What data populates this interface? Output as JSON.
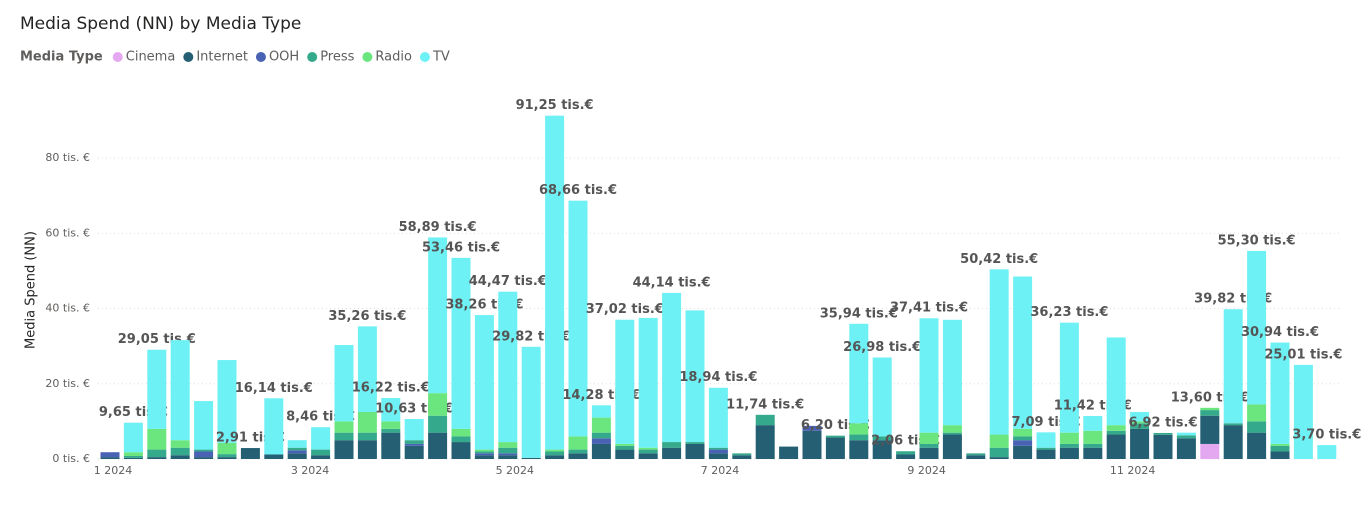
{
  "chart_data": {
    "type": "stacked_bar",
    "title": "Media Spend (NN) by Media Type",
    "legend_title": "Media Type",
    "legend": "top-left",
    "grid": true,
    "y_label": "Media Spend (NN)",
    "ylim": [
      0,
      95
    ],
    "yticks": [
      {
        "value": 0,
        "label": "0 tis. €"
      },
      {
        "value": 20,
        "label": "20 tis. €"
      },
      {
        "value": 40,
        "label": "40 tis. €"
      },
      {
        "value": 60,
        "label": "60 tis. €"
      },
      {
        "value": 80,
        "label": "80 tis. €"
      }
    ],
    "xticks": [
      {
        "value": 0.13,
        "label": "1 2024"
      },
      {
        "value": 8.55,
        "label": "3 2024"
      },
      {
        "value": 17.3,
        "label": "5 2024"
      },
      {
        "value": 26.07,
        "label": "7 2024"
      },
      {
        "value": 34.9,
        "label": "9 2024"
      },
      {
        "value": 43.7,
        "label": "11 2024"
      }
    ],
    "categories": [
      null,
      null,
      null,
      null,
      null,
      null,
      null,
      null,
      null,
      null,
      null,
      null,
      null,
      null,
      null,
      null,
      null,
      null,
      null,
      null,
      null,
      null,
      null,
      null,
      null,
      null,
      null,
      null,
      null,
      null,
      null,
      null,
      null,
      null,
      null,
      null,
      null,
      null,
      null,
      null,
      null,
      null,
      null,
      null,
      null,
      null,
      null,
      null,
      null,
      null,
      null,
      null,
      null
    ],
    "series": [
      {
        "name": "Cinema",
        "color": "#e4a8f0",
        "values": [
          0,
          0,
          0,
          0,
          0,
          0,
          0,
          0,
          0,
          0,
          0,
          0,
          0,
          0,
          0,
          0,
          0,
          0,
          0,
          0,
          0,
          0,
          0,
          0,
          0,
          0,
          0,
          0,
          0,
          0,
          0,
          0,
          0,
          0,
          0,
          0,
          0,
          0,
          0,
          0,
          0,
          0,
          0,
          0,
          0,
          0,
          0,
          4,
          0,
          0,
          0,
          0,
          0
        ]
      },
      {
        "name": "Internet",
        "color": "#245f73",
        "values": [
          0.5,
          0.3,
          0.5,
          1,
          0.5,
          0.5,
          2.91,
          1.2,
          1.5,
          1,
          5,
          5,
          7,
          3.5,
          7,
          4.5,
          1,
          1,
          0.3,
          1,
          1.5,
          4,
          2.5,
          1.5,
          3,
          4,
          1.5,
          1,
          9,
          3.3,
          7.5,
          5.7,
          5,
          5,
          1.2,
          3,
          6.5,
          1,
          0.5,
          3.5,
          2.5,
          3,
          3,
          6.5,
          8,
          6.42,
          5.5,
          7.5,
          9,
          7,
          2,
          0,
          0
        ]
      },
      {
        "name": "OOH",
        "color": "#4a62b3",
        "values": [
          1.3,
          0,
          0,
          0,
          1.5,
          0,
          0,
          0,
          0.8,
          0,
          0,
          0,
          0,
          0.5,
          0,
          0,
          0.5,
          0.5,
          0,
          0,
          0,
          1.5,
          0,
          0,
          0,
          0,
          1,
          0,
          0,
          0,
          1.3,
          0,
          0,
          0,
          0,
          0,
          0,
          0,
          0,
          1.5,
          0,
          0,
          0,
          0,
          0,
          0,
          0,
          0,
          0,
          0,
          0,
          0,
          0
        ]
      },
      {
        "name": "Press",
        "color": "#35a98b",
        "values": [
          0,
          0.5,
          2,
          2,
          0.5,
          0.8,
          0,
          0,
          0.7,
          1.5,
          2,
          2,
          1,
          1,
          4.5,
          1.5,
          0.5,
          1.5,
          0,
          1,
          1,
          1.5,
          1,
          1,
          1.5,
          0.5,
          0.5,
          0.5,
          2.74,
          0,
          0,
          0.5,
          1.5,
          1,
          0.86,
          1,
          0.5,
          0.5,
          2.5,
          1,
          0.5,
          1,
          1,
          1,
          1.5,
          0.5,
          0.8,
          1.5,
          0.5,
          3,
          1.5,
          0,
          0
        ]
      },
      {
        "name": "Radio",
        "color": "#6be67f",
        "values": [
          0,
          1,
          5.5,
          2,
          0,
          3,
          0,
          0,
          0,
          0,
          3,
          5.5,
          2,
          0,
          6,
          2,
          0.5,
          1.5,
          0,
          0.5,
          3.5,
          4,
          0.5,
          0.5,
          0,
          0,
          0,
          0,
          0,
          0,
          0,
          0,
          3,
          0,
          0,
          3,
          2,
          0,
          3.5,
          2,
          0,
          3,
          3.5,
          1.5,
          0.5,
          0,
          0,
          0.6,
          0,
          4.5,
          0.5,
          0,
          0
        ]
      },
      {
        "name": "TV",
        "color": "#6ef1f4",
        "values": [
          0,
          7.85,
          21.05,
          26.6,
          12.9,
          22,
          0,
          14.94,
          2,
          5.96,
          20.3,
          22.76,
          6.22,
          5.63,
          41.39,
          45.46,
          35.76,
          39.97,
          29.52,
          88.75,
          62.66,
          3.28,
          33.02,
          34.5,
          39.64,
          35,
          15.94,
          0,
          0,
          0,
          0,
          0,
          26.44,
          20.98,
          0,
          30.41,
          28,
          0,
          43.92,
          40.5,
          4.09,
          29.23,
          3.92,
          23.3,
          2.5,
          0,
          0.7,
          0,
          30.32,
          40.8,
          26.94,
          25.01,
          3.7
        ]
      }
    ],
    "totals": [
      null,
      9.65,
      29.05,
      null,
      null,
      null,
      2.91,
      16.14,
      null,
      8.46,
      null,
      35.26,
      16.22,
      10.63,
      58.89,
      53.46,
      38.26,
      44.47,
      29.82,
      91.25,
      68.66,
      14.28,
      37.02,
      null,
      44.14,
      null,
      18.94,
      null,
      11.74,
      null,
      null,
      6.2,
      35.94,
      26.98,
      2.06,
      37.41,
      null,
      null,
      50.42,
      null,
      7.09,
      36.23,
      11.42,
      null,
      null,
      6.92,
      null,
      13.6,
      39.82,
      55.3,
      30.94,
      25.01,
      3.7
    ],
    "total_labels": [
      null,
      "9,65 tis.€",
      "29,05 tis.€",
      null,
      null,
      null,
      "2,91 tis.€",
      "16,14 tis.€",
      null,
      "8,46 tis.€",
      null,
      "35,26 tis.€",
      "16,22 tis.€",
      "10,63 tis.€",
      "58,89 tis.€",
      "53,46 tis.€",
      "38,26 tis.€",
      "44,47 tis.€",
      "29,82 tis.€",
      "91,25 tis.€",
      "68,66 tis.€",
      "14,28 tis.€",
      "37,02 tis.€",
      null,
      "44,14 tis.€",
      null,
      "18,94 tis.€",
      null,
      "11,74 tis.€",
      null,
      null,
      "6,20 tis.€",
      "35,94 tis.€",
      "26,98 tis.€",
      "2,06 tis.€",
      "37,41 tis.€",
      null,
      null,
      "50,42 tis.€",
      null,
      "7,09 tis.€",
      "36,23 tis.€",
      "11,42 tis.€",
      null,
      null,
      "6,92 tis.€",
      null,
      "13,60 tis.€",
      "39,82 tis.€",
      "55,30 tis.€",
      "30,94 tis.€",
      "25,01 tis.€",
      "3,70 tis.€"
    ]
  }
}
